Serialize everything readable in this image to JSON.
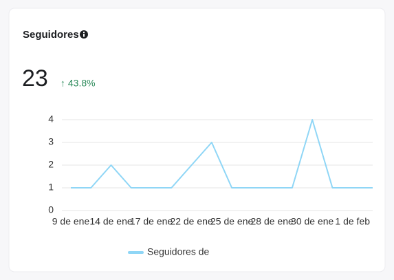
{
  "header": {
    "title": "Seguidores",
    "total": "23",
    "change": "↑ 43.8%"
  },
  "chart_data": {
    "type": "line",
    "categories": [
      "9 de ene",
      null,
      "14 de ene",
      null,
      "17 de ene",
      null,
      "22 de ene",
      null,
      "25 de ene",
      null,
      "28 de ene",
      null,
      "30 de ene",
      null,
      "1 de feb",
      null
    ],
    "series": [
      {
        "name": "Seguidores de",
        "color": "#8fd6f6",
        "values": [
          1,
          1,
          2,
          1,
          1,
          1,
          2,
          3,
          1,
          1,
          1,
          1,
          4,
          1,
          1,
          1
        ]
      }
    ],
    "ylim": [
      0,
      4
    ],
    "yticks": [
      0,
      1,
      2,
      3,
      4
    ],
    "grid": true
  }
}
